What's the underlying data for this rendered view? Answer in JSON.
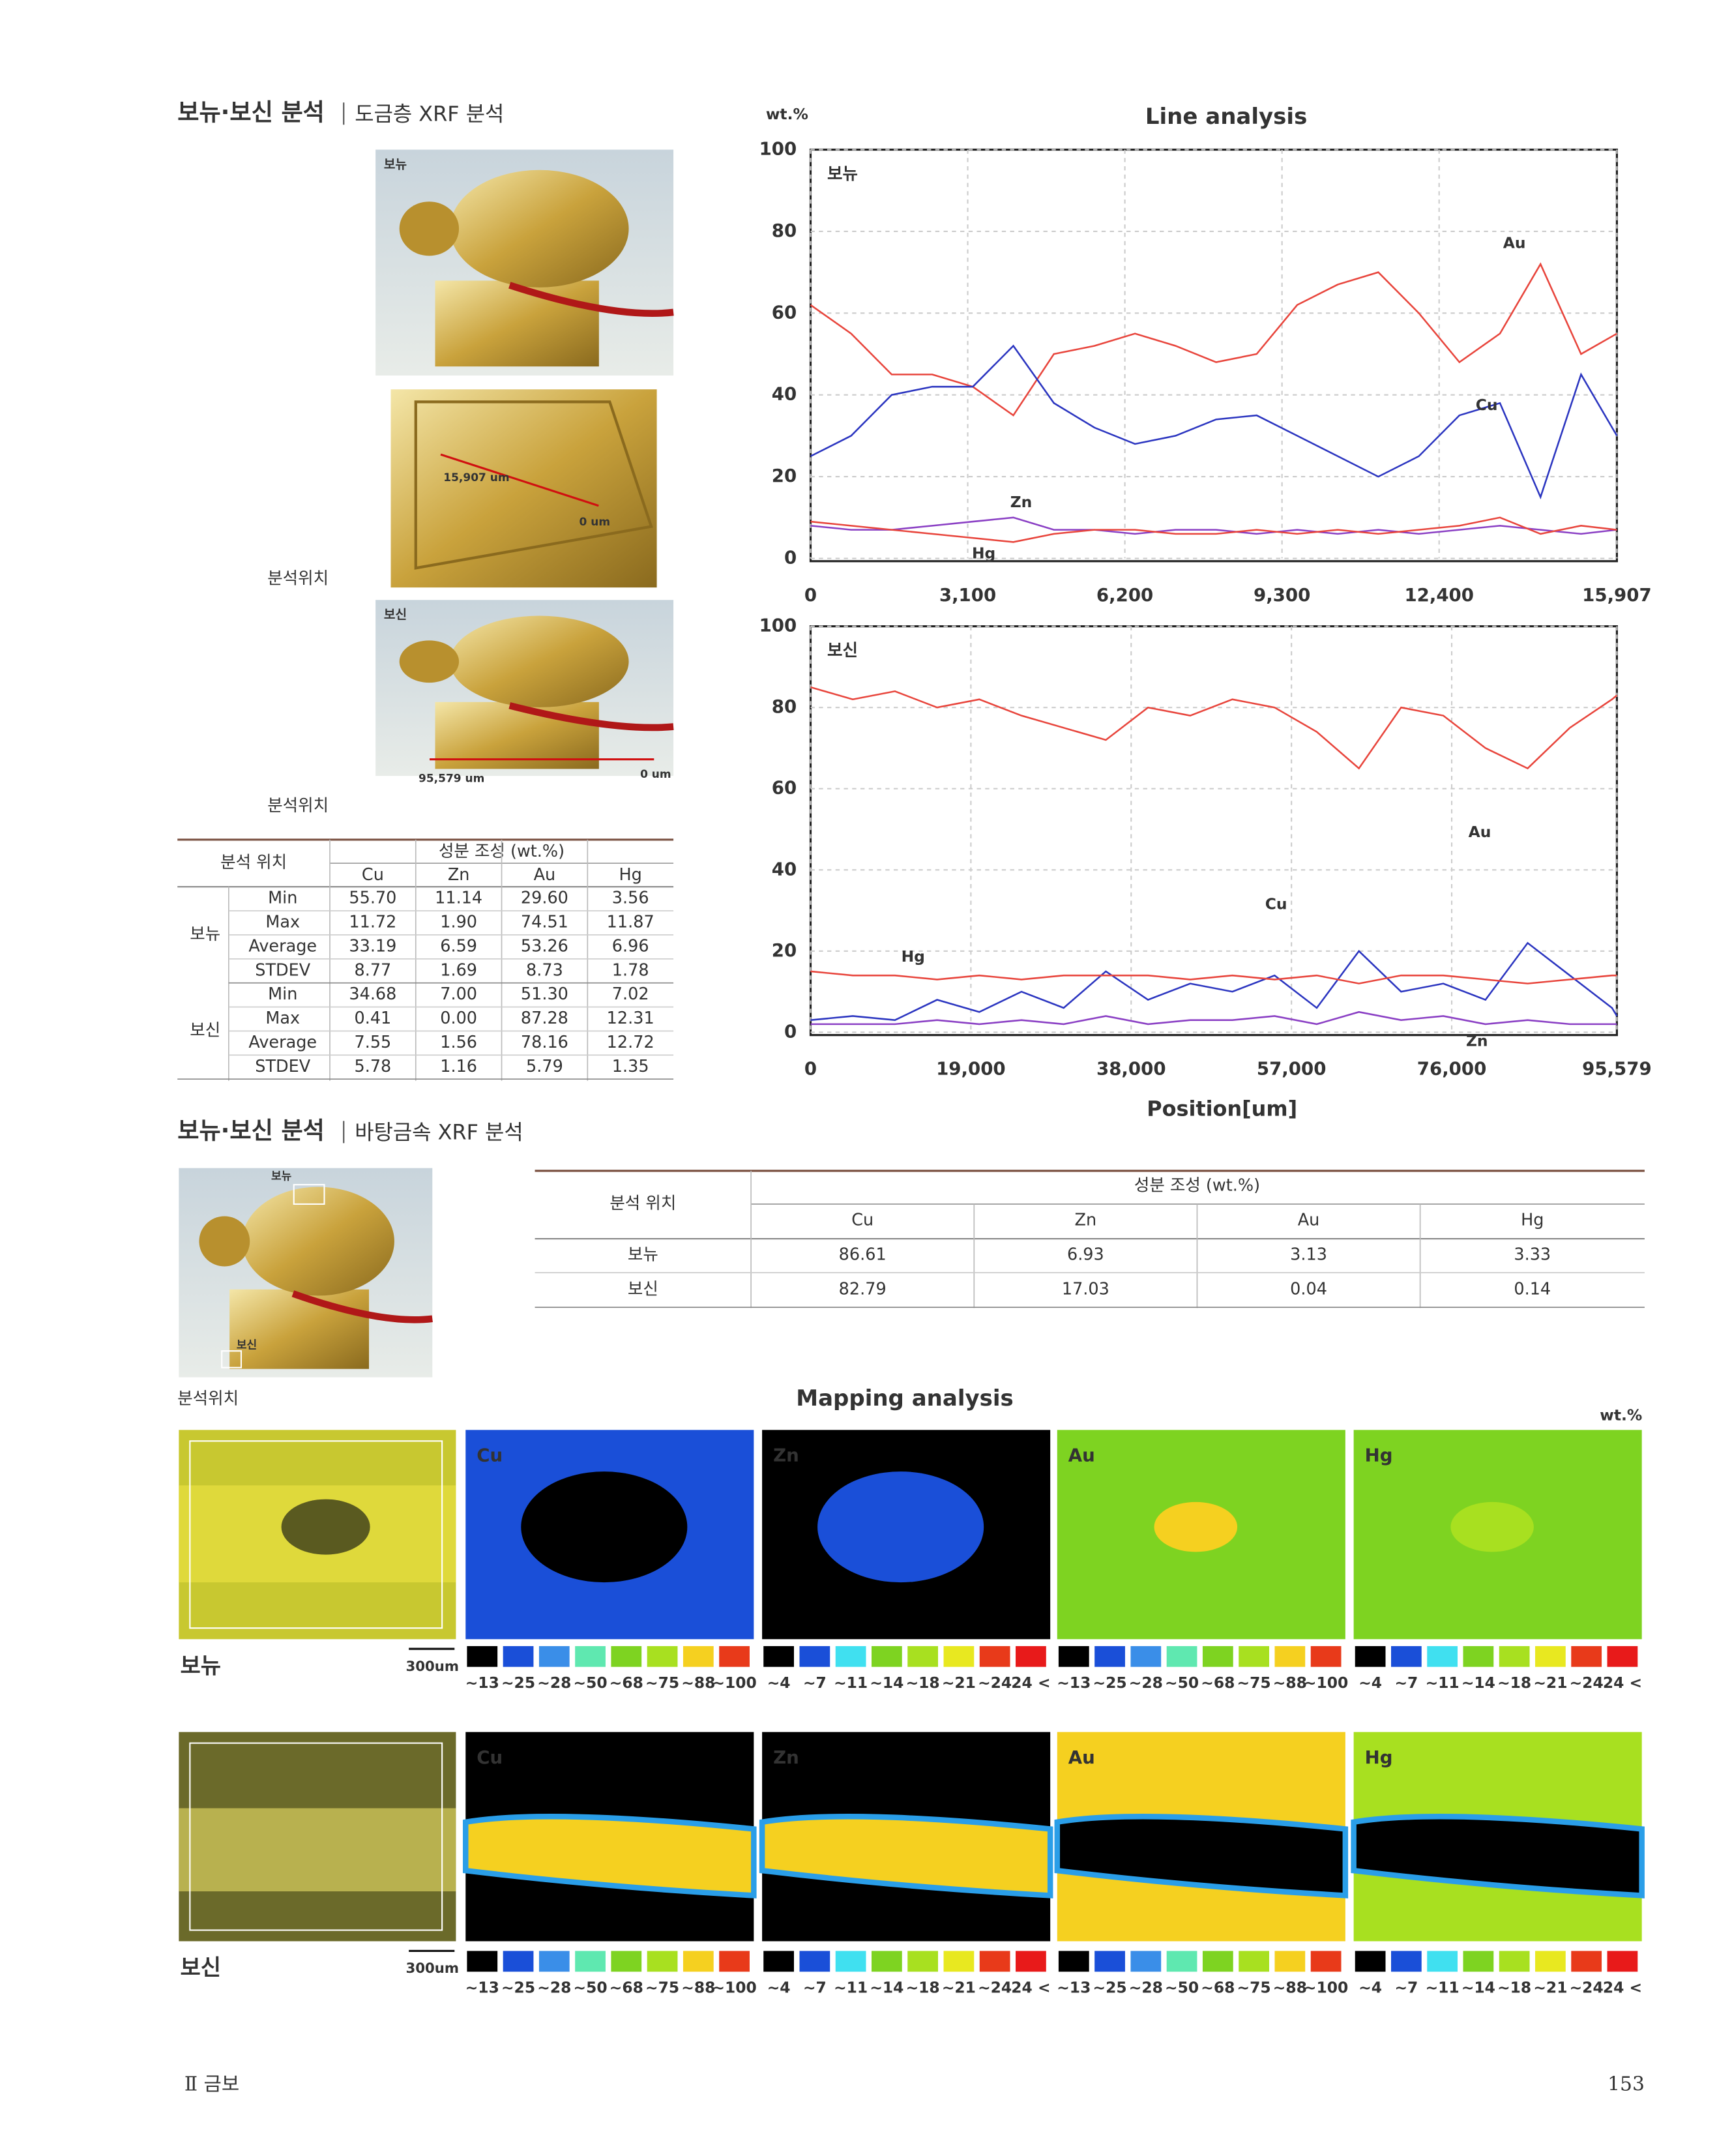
{
  "section1": {
    "title": "보뉴·보신 분석",
    "subtitle": "도금층 XRF 분석"
  },
  "photos": {
    "label_1": "보뉴",
    "scale_1": "15,907 um",
    "zero_1": "0 um",
    "label_2": "보신",
    "scale_2": "95,579 um",
    "zero_2": "0 um",
    "position_1": "분석위치",
    "position_2": "분석위치"
  },
  "table1": {
    "header_position": "분석 위치",
    "header_composition": "성분 조성 (wt.%)",
    "columns": [
      "Cu",
      "Zn",
      "Au",
      "Hg"
    ],
    "groups": [
      {
        "name": "보뉴",
        "rows": [
          {
            "stat": "Min",
            "values": [
              "55.70",
              "11.14",
              "29.60",
              "3.56"
            ]
          },
          {
            "stat": "Max",
            "values": [
              "11.72",
              "1.90",
              "74.51",
              "11.87"
            ]
          },
          {
            "stat": "Average",
            "values": [
              "33.19",
              "6.59",
              "53.26",
              "6.96"
            ]
          },
          {
            "stat": "STDEV",
            "values": [
              "8.77",
              "1.69",
              "8.73",
              "1.78"
            ]
          }
        ]
      },
      {
        "name": "보신",
        "rows": [
          {
            "stat": "Min",
            "values": [
              "34.68",
              "7.00",
              "51.30",
              "7.02"
            ]
          },
          {
            "stat": "Max",
            "values": [
              "0.41",
              "0.00",
              "87.28",
              "12.31"
            ]
          },
          {
            "stat": "Average",
            "values": [
              "7.55",
              "1.56",
              "78.16",
              "12.72"
            ]
          },
          {
            "stat": "STDEV",
            "values": [
              "5.78",
              "1.16",
              "5.79",
              "1.35"
            ]
          }
        ]
      }
    ]
  },
  "chart_data": [
    {
      "type": "line",
      "title": "Line analysis",
      "y_label": "wt.%",
      "panel_label": "보뉴",
      "grid": true,
      "xlim": [
        0,
        15907
      ],
      "xticks": [
        0,
        {
          "value": 3100,
          "label": "3,100"
        },
        {
          "value": 6200,
          "label": "6,200"
        },
        {
          "value": 9300,
          "label": "9,300"
        },
        {
          "value": 12400,
          "label": "12,400"
        },
        {
          "value": 15907,
          "label": "15,907"
        }
      ],
      "ylim": [
        0,
        100
      ],
      "yticks": [
        0,
        20,
        40,
        60,
        80,
        100
      ],
      "x": [
        0,
        800,
        1600,
        2400,
        3200,
        4000,
        4800,
        5600,
        6400,
        7200,
        8000,
        8800,
        9600,
        10400,
        11200,
        12000,
        12800,
        13600,
        14400,
        15200,
        15907
      ],
      "series": [
        {
          "name": "Au",
          "color": "#e8453c",
          "values": [
            62,
            55,
            45,
            45,
            42,
            35,
            50,
            52,
            55,
            52,
            48,
            50,
            62,
            67,
            70,
            60,
            48,
            55,
            72,
            50,
            55
          ]
        },
        {
          "name": "Cu",
          "color": "#2b35c0",
          "values": [
            25,
            30,
            40,
            42,
            42,
            52,
            38,
            32,
            28,
            30,
            34,
            35,
            30,
            25,
            20,
            25,
            35,
            38,
            15,
            45,
            30
          ]
        },
        {
          "name": "Zn",
          "color": "#8a3fc4",
          "values": [
            8,
            7,
            7,
            8,
            9,
            10,
            7,
            7,
            6,
            7,
            7,
            6,
            7,
            6,
            7,
            6,
            7,
            8,
            7,
            6,
            7
          ]
        },
        {
          "name": "Hg",
          "color": "#e8453c",
          "values": [
            9,
            8,
            7,
            6,
            5,
            4,
            6,
            7,
            7,
            6,
            6,
            7,
            6,
            7,
            6,
            7,
            8,
            10,
            6,
            8,
            7
          ]
        }
      ]
    },
    {
      "type": "line",
      "panel_label": "보신",
      "x_label": "Position[um]",
      "grid": true,
      "xlim": [
        0,
        95579
      ],
      "xticks": [
        0,
        {
          "value": 19000,
          "label": "19,000"
        },
        {
          "value": 38000,
          "label": "38,000"
        },
        {
          "value": 57000,
          "label": "57,000"
        },
        {
          "value": 76000,
          "label": "76,000"
        },
        {
          "value": 95579,
          "label": "95,579"
        }
      ],
      "ylim": [
        0,
        100
      ],
      "yticks": [
        0,
        20,
        40,
        60,
        80,
        100
      ],
      "x": [
        0,
        5000,
        10000,
        15000,
        20000,
        25000,
        30000,
        35000,
        40000,
        45000,
        50000,
        55000,
        60000,
        65000,
        70000,
        75000,
        80000,
        85000,
        90000,
        95000,
        95579
      ],
      "series": [
        {
          "name": "Au",
          "color": "#e8453c",
          "values": [
            85,
            82,
            84,
            80,
            82,
            78,
            75,
            72,
            80,
            78,
            82,
            80,
            74,
            65,
            80,
            78,
            70,
            65,
            75,
            82,
            83
          ]
        },
        {
          "name": "Cu",
          "color": "#2b35c0",
          "values": [
            3,
            4,
            3,
            8,
            5,
            10,
            6,
            15,
            8,
            12,
            10,
            14,
            6,
            20,
            10,
            12,
            8,
            22,
            14,
            6,
            4
          ]
        },
        {
          "name": "Hg",
          "color": "#e8453c",
          "values": [
            15,
            14,
            14,
            13,
            14,
            13,
            14,
            14,
            14,
            13,
            14,
            13,
            14,
            12,
            14,
            14,
            13,
            12,
            13,
            14,
            14
          ]
        },
        {
          "name": "Zn",
          "color": "#8a3fc4",
          "values": [
            2,
            2,
            2,
            3,
            2,
            3,
            2,
            4,
            2,
            3,
            3,
            4,
            2,
            5,
            3,
            4,
            2,
            3,
            2,
            2,
            2
          ]
        }
      ]
    }
  ],
  "section2": {
    "title": "보뉴·보신 분석",
    "subtitle": "바탕금속 XRF 분석",
    "photo_label_1": "보뉴",
    "photo_label_2": "보신",
    "position": "분석위치"
  },
  "table2": {
    "header_position": "분석 위치",
    "header_composition": "성분 조성 (wt.%)",
    "columns": [
      "Cu",
      "Zn",
      "Au",
      "Hg"
    ],
    "rows": [
      {
        "name": "보뉴",
        "values": [
          "86.61",
          "6.93",
          "3.13",
          "3.33"
        ]
      },
      {
        "name": "보신",
        "values": [
          "82.79",
          "17.03",
          "0.04",
          "0.14"
        ]
      }
    ]
  },
  "mapping": {
    "title": "Mapping analysis",
    "unit": "wt.%",
    "rows": [
      {
        "name": "보뉴",
        "scale": "300um",
        "maps": [
          {
            "element": "Cu",
            "legend": [
              "~13",
              "~25",
              "~28",
              "~50",
              "~68",
              "~75",
              "~88",
              "~100"
            ]
          },
          {
            "element": "Zn",
            "legend": [
              "~4",
              "~7",
              "~11",
              "~14",
              "~18",
              "~21",
              "~24",
              "24 <"
            ]
          },
          {
            "element": "Au",
            "legend": [
              "~13",
              "~25",
              "~28",
              "~50",
              "~68",
              "~75",
              "~88",
              "~100"
            ]
          },
          {
            "element": "Hg",
            "legend": [
              "~4",
              "~7",
              "~11",
              "~14",
              "~18",
              "~21",
              "~24",
              "24 <"
            ]
          }
        ]
      },
      {
        "name": "보신",
        "scale": "300um",
        "maps": [
          {
            "element": "Cu",
            "legend": [
              "~13",
              "~25",
              "~28",
              "~50",
              "~68",
              "~75",
              "~88",
              "~100"
            ]
          },
          {
            "element": "Zn",
            "legend": [
              "~4",
              "~7",
              "~11",
              "~14",
              "~18",
              "~21",
              "~24",
              "24 <"
            ]
          },
          {
            "element": "Au",
            "legend": [
              "~13",
              "~25",
              "~28",
              "~50",
              "~68",
              "~75",
              "~88",
              "~100"
            ]
          },
          {
            "element": "Hg",
            "legend": [
              "~4",
              "~7",
              "~11",
              "~14",
              "~18",
              "~21",
              "~24",
              "24 <"
            ]
          }
        ]
      }
    ]
  },
  "footer": {
    "chapter": "Ⅱ 금보",
    "page": "153"
  }
}
